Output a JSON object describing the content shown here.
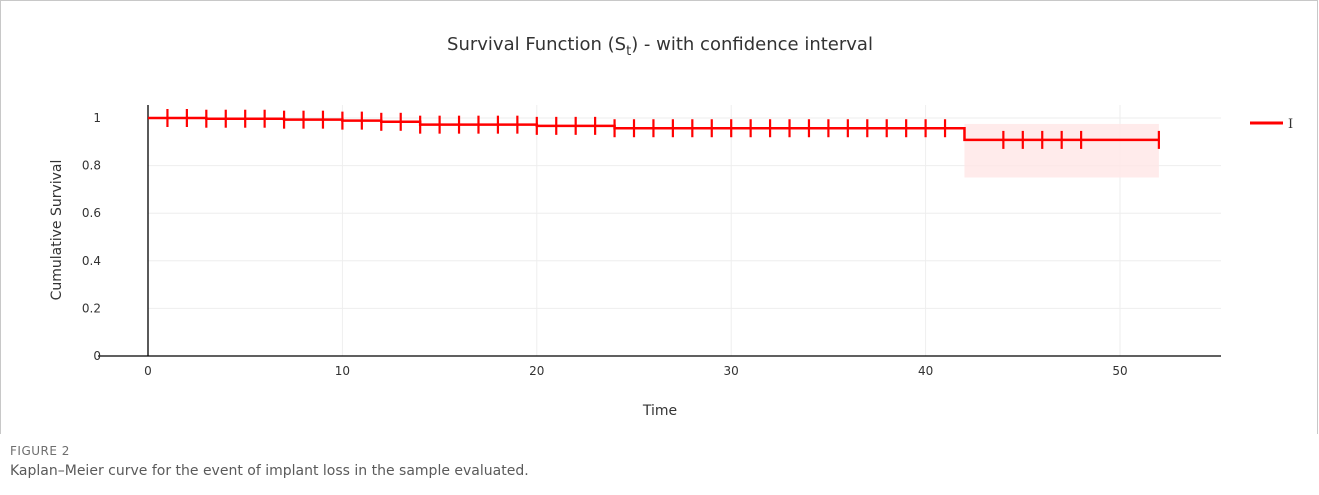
{
  "chart_data": {
    "type": "line",
    "title_prefix": "Survival Function (S",
    "title_sub": "t",
    "title_suffix": ") - with confidence interval",
    "xlabel": "Time",
    "ylabel": "Cumulative Survival",
    "xlim": [
      -1,
      55
    ],
    "ylim": [
      0,
      1.06
    ],
    "xticks": [
      0,
      10,
      20,
      30,
      40,
      50
    ],
    "yticks": [
      0,
      0.2,
      0.4,
      0.6,
      0.8,
      1
    ],
    "ytick_labels": [
      "0",
      "0.2",
      "0.4",
      "0.6",
      "0.8",
      "1"
    ],
    "grid": true,
    "legend_position": "right",
    "series": [
      {
        "name": "I",
        "color": "#ff0000",
        "steps": [
          {
            "x": 0,
            "y": 1.0
          },
          {
            "x": 3,
            "y": 0.997
          },
          {
            "x": 7,
            "y": 0.993
          },
          {
            "x": 10,
            "y": 0.989
          },
          {
            "x": 12,
            "y": 0.984
          },
          {
            "x": 14,
            "y": 0.972
          },
          {
            "x": 20,
            "y": 0.967
          },
          {
            "x": 24,
            "y": 0.957
          },
          {
            "x": 42,
            "y": 0.908
          }
        ],
        "end_x": 52,
        "censored_x": [
          1,
          2,
          3,
          4,
          5,
          6,
          7,
          8,
          9,
          10,
          11,
          12,
          13,
          14,
          15,
          16,
          17,
          18,
          19,
          20,
          21,
          22,
          23,
          24,
          25,
          26,
          27,
          28,
          29,
          30,
          31,
          32,
          33,
          34,
          35,
          36,
          37,
          38,
          39,
          40,
          41,
          44,
          45,
          46,
          47,
          48,
          52
        ],
        "ci_band": {
          "x_start": 42,
          "x_end": 52,
          "lower": 0.75,
          "upper": 0.975,
          "color": "#ffe6e6"
        }
      }
    ]
  },
  "caption": {
    "label": "FIGURE 2",
    "text": "Kaplan–Meier curve for the event of implant loss in the sample evaluated."
  }
}
